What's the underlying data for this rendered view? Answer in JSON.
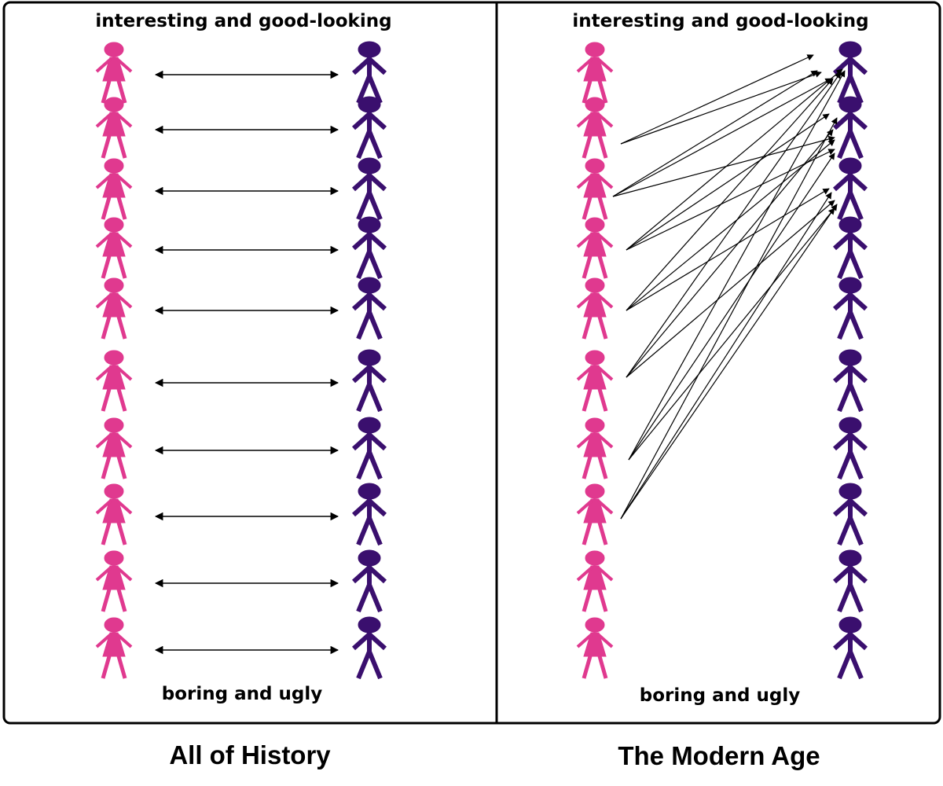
{
  "panels": [
    {
      "top_label": "interesting and good-looking",
      "bottom_label": "boring and ugly",
      "caption": "All of History"
    },
    {
      "top_label": "interesting and good-looking",
      "bottom_label": "boring and ugly",
      "caption": "The Modern Age"
    }
  ]
}
